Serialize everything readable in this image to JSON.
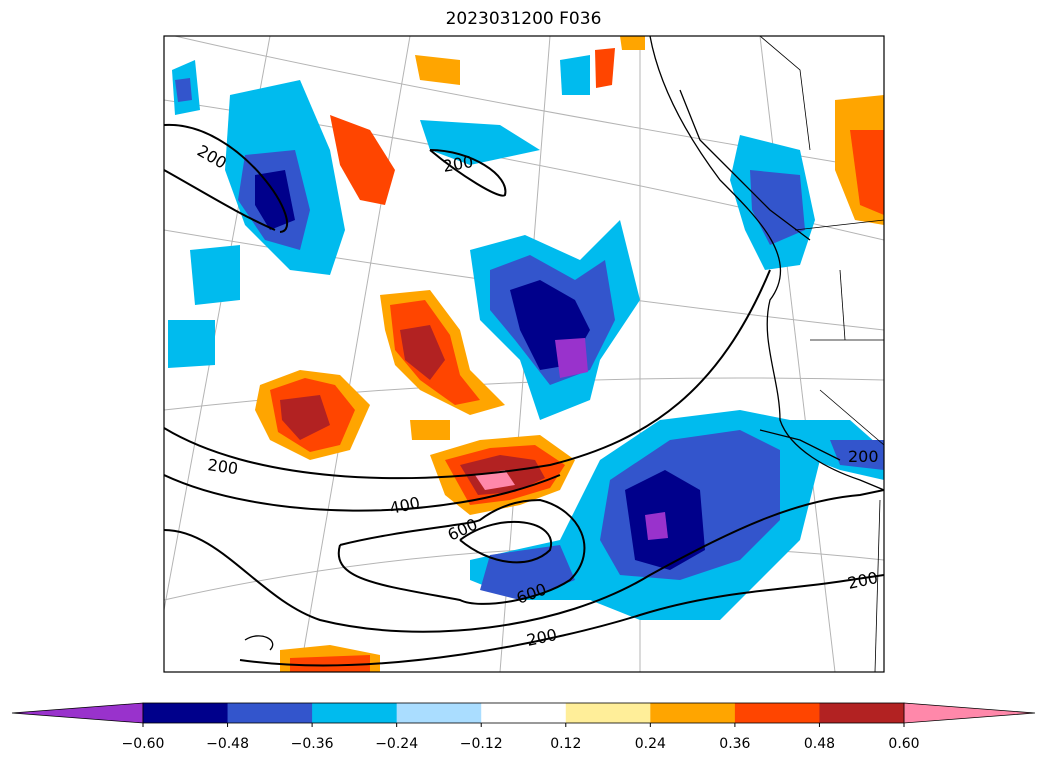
{
  "title": "2023031200 F036",
  "colorbar": {
    "under_color": "#9932cc",
    "over_color": "#ff88aa",
    "colors": [
      "#00008b",
      "#3355cc",
      "#00bbee",
      "#aaddff",
      "#ffffff",
      "#ffee99",
      "#ffa500",
      "#ff4500",
      "#b22222"
    ],
    "ticks": [
      "−0.60",
      "−0.48",
      "−0.36",
      "−0.24",
      "−0.12",
      "0.12",
      "0.24",
      "0.36",
      "0.48",
      "0.60"
    ]
  },
  "contour_labels": [
    "200",
    "200",
    "200",
    "400",
    "600",
    "600",
    "200",
    "200",
    "200"
  ],
  "colors": {
    "contour": "#000000",
    "graticule": "#b4b4b4",
    "coastline": "#000000"
  }
}
